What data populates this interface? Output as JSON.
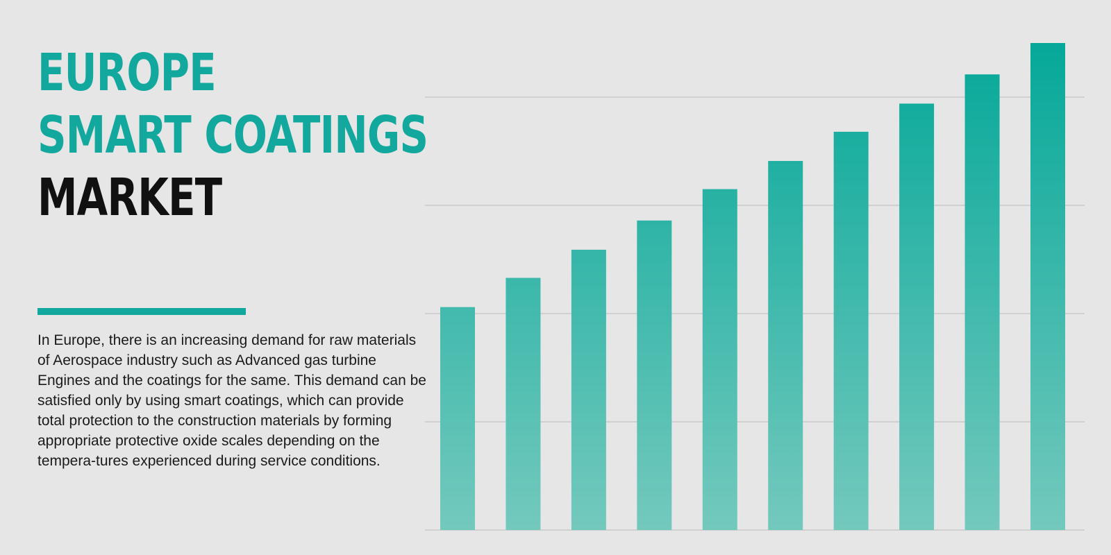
{
  "header": {
    "title_line1": "EUROPE",
    "title_line2": "SMART COATINGS",
    "title_line3": "MARKET"
  },
  "description": "In Europe, there is an increasing demand for raw materials of Aerospace industry such as Advanced gas turbine Engines and the coatings for the same. This demand can be satisfied only by using smart coatings, which can provide total protection to the construction materials by forming appropriate protective oxide scales depending on the tempera-tures experienced during service conditions.",
  "colors": {
    "accent": "#13a89e",
    "bar_top": "#05a899",
    "bar_bottom": "#74c9bd",
    "grid": "#c9c9c9",
    "title_dark": "#111111",
    "background": "#e6e6e6"
  },
  "chart_data": {
    "type": "bar",
    "title": "",
    "xlabel": "",
    "ylabel": "",
    "categories": [
      "",
      "",
      "",
      "",
      "",
      "",
      "",
      "",
      "",
      ""
    ],
    "values": [
      2.06,
      2.33,
      2.59,
      2.86,
      3.15,
      3.41,
      3.68,
      3.94,
      4.21,
      4.5
    ],
    "ylim": [
      0,
      4.5
    ],
    "grid": true,
    "gridlines": [
      1,
      2,
      3,
      4
    ],
    "legend": "none"
  }
}
